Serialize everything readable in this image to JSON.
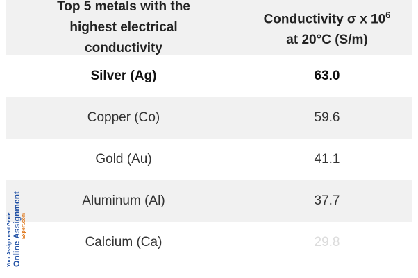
{
  "table": {
    "header": [
      [
        "Top 5 metals with the highest electrical conductivity"
      ],
      [
        "Conductivity σ x 10",
        "6",
        "at 20°C (S/m)"
      ]
    ],
    "rows": [
      [
        "Silver (Ag)",
        "63.0"
      ],
      [
        "Copper (Co)",
        "59.6"
      ],
      [
        "Gold (Au)",
        "41.1"
      ],
      [
        "Aluminum (Al)",
        "37.7"
      ],
      [
        "Calcium (Ca)",
        "29.8"
      ]
    ]
  },
  "watermark": {
    "tagline": "Your Assignment Genie",
    "name": "Online Assignment",
    "domain": "Expert.com"
  }
}
